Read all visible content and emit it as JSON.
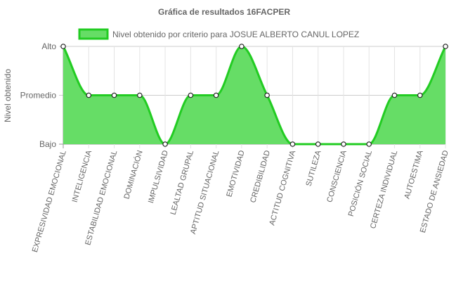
{
  "chart_data": {
    "type": "area",
    "title": "Gráfica de resultados 16FACPER",
    "ylabel": "Nivel obtenido",
    "xlabel": "",
    "y_levels": [
      "Bajo",
      "Promedio",
      "Alto"
    ],
    "ylim": [
      0,
      2
    ],
    "grid": true,
    "legend_position": "top",
    "categories": [
      "EXPRESIVIDAD EMOCIONAL",
      "INTELIGENCIA",
      "ESTABILIDAD EMOCIONAL",
      "DOMINACIÓN",
      "IMPULSIVIDAD",
      "LEALTAD GRUPAL",
      "APTITUD SITUACIONAL",
      "EMOTIVIDAD",
      "CREDIBILIDAD",
      "ACTITUD COGNITIVA",
      "SUTILEZA",
      "CONSCIENCIA",
      "POSICIÓN SOCIAL",
      "CERTEZA INDIVIDUAL",
      "AUTOESTIMA",
      "ESTADO DE ANSIEDAD"
    ],
    "series": [
      {
        "name": "Nivel obtenido por criterio para JOSUE ALBERTO CANUL LOPEZ",
        "values": [
          2,
          1,
          1,
          1,
          0,
          1,
          1,
          2,
          1,
          0,
          0,
          0,
          0,
          1,
          1,
          2
        ],
        "fill_color": "#66dd66",
        "line_color": "#22cc22"
      }
    ]
  }
}
